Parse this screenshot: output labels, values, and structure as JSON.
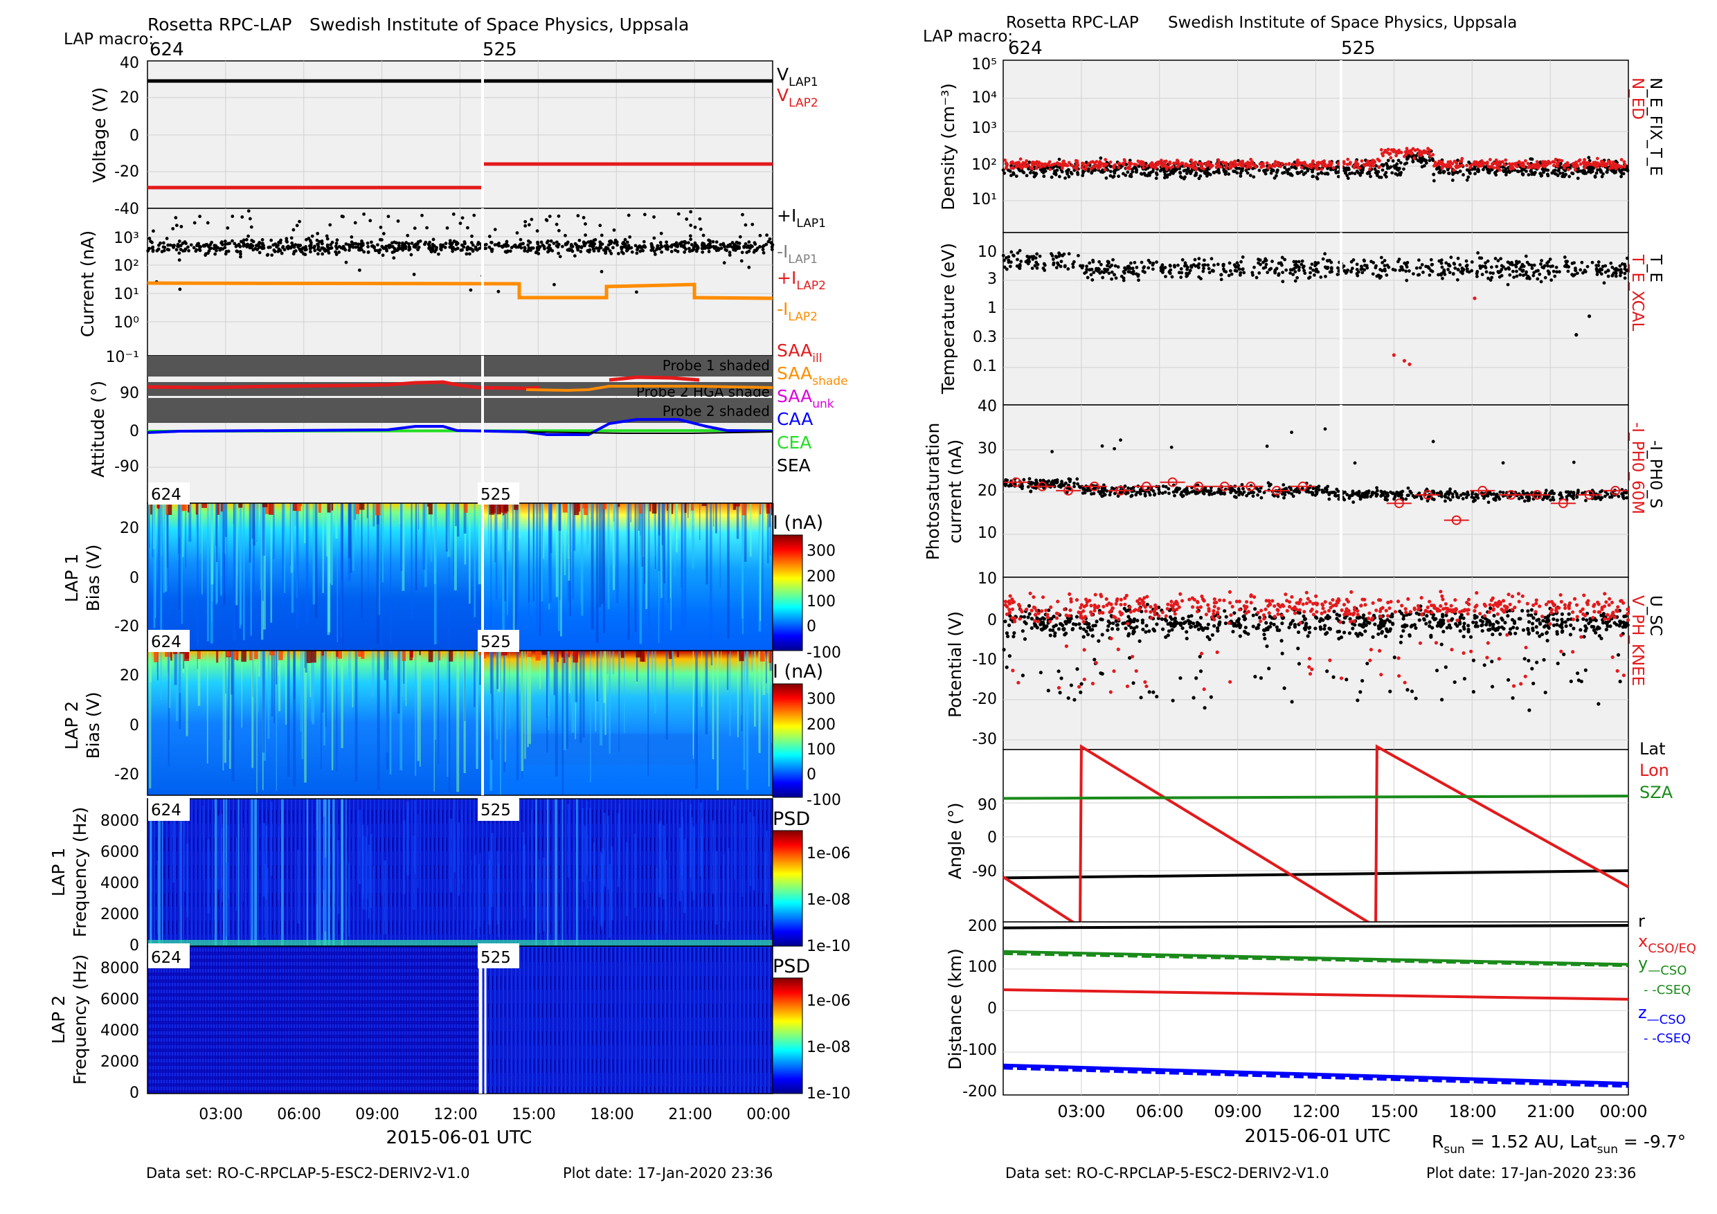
{
  "left_page": {
    "institution": "Rosetta RPC-LAP",
    "institute": "Swedish Institute of Space Physics, Uppsala",
    "macro_label": "LAP macro:",
    "macros": [
      "624",
      "525"
    ],
    "xlabel": "2015-06-01 UTC",
    "footer_dataset": "Data set: RO-C-RPCLAP-5-ESC2-DERIV2-V1.0",
    "footer_date": "Plot date: 17-Jan-2020 23:36"
  },
  "right_page": {
    "institution": "Rosetta RPC-LAP",
    "institute": "Swedish Institute of Space Physics, Uppsala",
    "macro_label": "LAP macro:",
    "macros": [
      "624",
      "525"
    ],
    "xlabel": "2015-06-01 UTC",
    "rsun_text": "R",
    "rsun_sub": "sun",
    "rsun_value": " = 1.52 AU, Lat",
    "latsun_sub": "sun",
    "latsun_value": " = -9.7°",
    "footer_dataset": "Data set: RO-C-RPCLAP-5-ESC2-DERIV2-V1.0",
    "footer_date": "Plot date: 17-Jan-2020 23:36"
  },
  "time_ticks": [
    "03:00",
    "06:00",
    "09:00",
    "12:00",
    "15:00",
    "18:00",
    "21:00",
    "00:00"
  ],
  "colors": {
    "black": "#000000",
    "red": "#e31a1c",
    "orange": "#ff8c00",
    "green": "#1a8a1a",
    "blue": "#0000ff",
    "lime": "#22dd22",
    "magenta": "#dd00dd",
    "gray": "#808080",
    "panel_bg": "#f0f0f0"
  },
  "chart_data": [
    {
      "type": "line",
      "panel": "voltage",
      "ylabel": "Voltage (V)",
      "ylim": [
        -40,
        40
      ],
      "yticks": [
        "40",
        "20",
        "0",
        "-20",
        "-40"
      ],
      "x_range_hours": [
        0,
        24
      ],
      "series": [
        {
          "name": "V",
          "sub": "LAP1",
          "color": "black",
          "segments": [
            [
              0,
              24,
              29
            ]
          ]
        },
        {
          "name": "V",
          "sub": "LAP2",
          "color": "red",
          "segments": [
            [
              0,
              12.9,
              -29
            ],
            [
              12.9,
              24,
              -16
            ]
          ]
        }
      ]
    },
    {
      "type": "scatter",
      "panel": "current",
      "ylabel": "Current (nA)",
      "yscale": "log",
      "ylim": [
        0.1,
        3000
      ],
      "yticks": [
        "10³",
        "10²",
        "10¹",
        "10⁰",
        "10⁻¹"
      ],
      "series": [
        {
          "name": "+I",
          "sub": "LAP1",
          "color": "black",
          "typical": 200
        },
        {
          "name": "-I",
          "sub": "LAP1",
          "color": "gray"
        },
        {
          "name": "+I",
          "sub": "LAP2",
          "color": "red"
        },
        {
          "name": "-I",
          "sub": "LAP2",
          "color": "orange",
          "segments": [
            [
              0,
              14.2,
              25
            ],
            [
              14.2,
              17.2,
              9
            ],
            [
              17.2,
              20.8,
              20
            ],
            [
              20.8,
              24,
              9
            ]
          ]
        }
      ]
    },
    {
      "type": "line",
      "panel": "attitude",
      "ylabel": "Attitude (°)",
      "yticks": [
        "90",
        "0",
        "-90"
      ],
      "shade_labels": [
        "Probe 1 shaded",
        "Probe 2 HGA shade",
        "Probe 2 shaded"
      ],
      "series": [
        {
          "name": "SAA",
          "sub": "ill",
          "color": "red"
        },
        {
          "name": "SAA",
          "sub": "shade",
          "color": "orange"
        },
        {
          "name": "SAA",
          "sub": "unk",
          "color": "magenta"
        },
        {
          "name": "CAA",
          "sub": "",
          "color": "blue"
        },
        {
          "name": "CEA",
          "sub": "",
          "color": "lime"
        },
        {
          "name": "SEA",
          "sub": "",
          "color": "black"
        }
      ]
    },
    {
      "type": "heatmap",
      "panel": "lap1_bias",
      "ylabel": [
        "LAP 1",
        "Bias (V)"
      ],
      "yticks": [
        "20",
        "0",
        "-20"
      ],
      "colorbar_label": "I (nA)",
      "colorbar_ticks": [
        "300",
        "200",
        "100",
        "0",
        "-100"
      ]
    },
    {
      "type": "heatmap",
      "panel": "lap2_bias",
      "ylabel": [
        "LAP 2",
        "Bias (V)"
      ],
      "yticks": [
        "20",
        "0",
        "-20"
      ],
      "colorbar_label": "I (nA)",
      "colorbar_ticks": [
        "300",
        "200",
        "100",
        "0",
        "-100"
      ]
    },
    {
      "type": "heatmap",
      "panel": "lap1_freq",
      "ylabel": [
        "LAP 1",
        "Frequency (Hz)"
      ],
      "yticks": [
        "8000",
        "6000",
        "4000",
        "2000",
        "0"
      ],
      "colorbar_label": "PSD",
      "colorbar_ticks": [
        "1e-06",
        "1e-08",
        "1e-10"
      ]
    },
    {
      "type": "heatmap",
      "panel": "lap2_freq",
      "ylabel": [
        "LAP 2",
        "Frequency (Hz)"
      ],
      "yticks": [
        "8000",
        "6000",
        "4000",
        "2000",
        "0"
      ],
      "colorbar_label": "PSD",
      "colorbar_ticks": [
        "1e-06",
        "1e-08",
        "1e-10"
      ]
    },
    {
      "type": "scatter",
      "panel": "density",
      "ylabel": "Density (cm⁻³)",
      "yscale": "log",
      "ylim": [
        1,
        100000
      ],
      "yticks": [
        "10⁵",
        "10⁴",
        "10³",
        "10²",
        "10¹"
      ],
      "series": [
        {
          "name": "N_ED",
          "color": "red",
          "typical": 150
        },
        {
          "name": "N_E_FIX_T_E",
          "color": "black",
          "typical": 110
        }
      ]
    },
    {
      "type": "scatter",
      "panel": "temperature",
      "ylabel": "Temperature (eV)",
      "yscale": "log",
      "ylim": [
        0.01,
        20
      ],
      "yticks": [
        "10",
        "3",
        "1",
        "0.3",
        "0.1"
      ],
      "series": [
        {
          "name": "T_E_XCAL",
          "color": "red"
        },
        {
          "name": "T_E",
          "color": "black",
          "typical": 4
        }
      ]
    },
    {
      "type": "scatter",
      "panel": "photosaturation",
      "ylabel": [
        "Photosaturation",
        "current (nA)"
      ],
      "ylim": [
        10,
        40
      ],
      "yticks": [
        "40",
        "30",
        "20",
        "10"
      ],
      "series": [
        {
          "name": "-I_PH0_60M",
          "color": "red"
        },
        {
          "name": "-I_PH0_S",
          "color": "black",
          "typical": 21
        }
      ]
    },
    {
      "type": "scatter",
      "panel": "potential",
      "ylabel": "Potential (V)",
      "ylim": [
        -32,
        2
      ],
      "yticks": [
        "10",
        "0",
        "-10",
        "-20",
        "-30"
      ],
      "series": [
        {
          "name": "V_PH_KNEE",
          "color": "red"
        },
        {
          "name": "U_SC",
          "color": "black",
          "typical": -7
        }
      ]
    },
    {
      "type": "line",
      "panel": "angle",
      "ylabel": "Angle (°)",
      "ylim": [
        -180,
        180
      ],
      "yticks": [
        "90",
        "0",
        "-90"
      ],
      "series": [
        {
          "name": "Lat",
          "color": "black",
          "points": [
            [
              0,
              -88
            ],
            [
              24,
              -73
            ]
          ]
        },
        {
          "name": "Lon",
          "color": "red",
          "points": [
            [
              0,
              -86
            ],
            [
              2.95,
              -190
            ],
            [
              3.0,
              186
            ],
            [
              14.3,
              -190
            ],
            [
              14.35,
              186
            ],
            [
              24,
              -107
            ]
          ]
        },
        {
          "name": "SZA",
          "color": "green",
          "points": [
            [
              0,
              78
            ],
            [
              24,
              83
            ]
          ]
        }
      ]
    },
    {
      "type": "line",
      "panel": "distance",
      "ylabel": "Distance (km)",
      "ylim": [
        -200,
        210
      ],
      "yticks": [
        "200",
        "100",
        "0",
        "-100",
        "-200"
      ],
      "series": [
        {
          "name": "r",
          "color": "black",
          "points": [
            [
              0,
              199
            ],
            [
              24,
              205
            ]
          ]
        },
        {
          "name": "x",
          "sub": "CSO/EQ",
          "color": "red",
          "points": [
            [
              0,
              50
            ],
            [
              24,
              27
            ]
          ]
        },
        {
          "name": "y",
          "sub": "—CSO",
          "color": "green",
          "points": [
            [
              0,
              142
            ],
            [
              24,
              111
            ]
          ]
        },
        {
          "name": " - -CSEQ",
          "color": "green",
          "points": [
            [
              0,
              137
            ],
            [
              24,
              108
            ]
          ]
        },
        {
          "name": "z",
          "sub": "—CSO",
          "color": "blue",
          "points": [
            [
              0,
              -132
            ],
            [
              24,
              -176
            ]
          ]
        },
        {
          "name": " - -CSEQ",
          "color": "blue",
          "points": [
            [
              0,
              -138
            ],
            [
              24,
              -182
            ]
          ]
        }
      ]
    }
  ]
}
